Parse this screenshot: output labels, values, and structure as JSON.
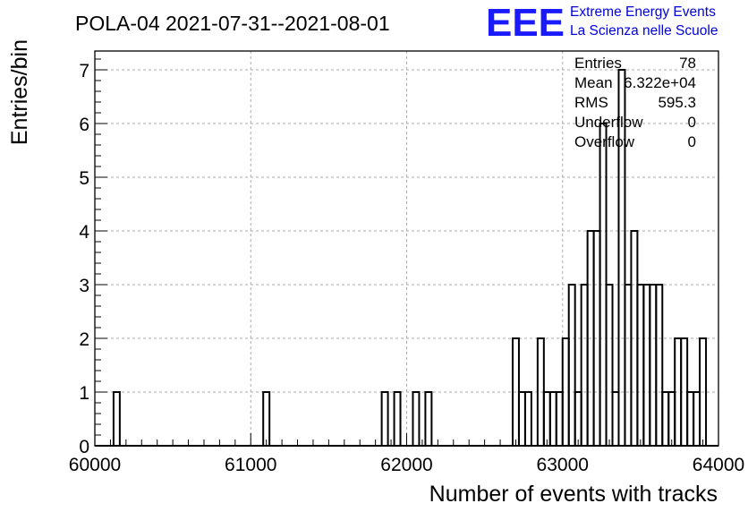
{
  "chart_data": {
    "type": "bar",
    "title": "POLA-04 2021-07-31--2021-08-01",
    "xlabel": "Number of events with tracks",
    "ylabel": "Entries/bin",
    "xlim": [
      60000,
      64000
    ],
    "ylim": [
      0,
      7.35
    ],
    "x_ticks": [
      60000,
      61000,
      62000,
      63000,
      64000
    ],
    "y_ticks": [
      0,
      1,
      2,
      3,
      4,
      5,
      6,
      7
    ],
    "grid": true,
    "bin_width": 40,
    "bins": [
      {
        "x": 60120,
        "count": 1
      },
      {
        "x": 61080,
        "count": 1
      },
      {
        "x": 61840,
        "count": 1
      },
      {
        "x": 61920,
        "count": 1
      },
      {
        "x": 62040,
        "count": 1
      },
      {
        "x": 62120,
        "count": 1
      },
      {
        "x": 62680,
        "count": 2
      },
      {
        "x": 62720,
        "count": 1
      },
      {
        "x": 62760,
        "count": 1
      },
      {
        "x": 62840,
        "count": 2
      },
      {
        "x": 62880,
        "count": 1
      },
      {
        "x": 62920,
        "count": 1
      },
      {
        "x": 62960,
        "count": 1
      },
      {
        "x": 63000,
        "count": 2
      },
      {
        "x": 63040,
        "count": 3
      },
      {
        "x": 63080,
        "count": 1
      },
      {
        "x": 63120,
        "count": 3
      },
      {
        "x": 63160,
        "count": 4
      },
      {
        "x": 63200,
        "count": 4
      },
      {
        "x": 63240,
        "count": 6
      },
      {
        "x": 63280,
        "count": 3
      },
      {
        "x": 63320,
        "count": 1
      },
      {
        "x": 63360,
        "count": 7
      },
      {
        "x": 63400,
        "count": 3
      },
      {
        "x": 63440,
        "count": 4
      },
      {
        "x": 63480,
        "count": 3
      },
      {
        "x": 63520,
        "count": 3
      },
      {
        "x": 63560,
        "count": 3
      },
      {
        "x": 63600,
        "count": 3
      },
      {
        "x": 63640,
        "count": 1
      },
      {
        "x": 63680,
        "count": 1
      },
      {
        "x": 63720,
        "count": 2
      },
      {
        "x": 63760,
        "count": 2
      },
      {
        "x": 63800,
        "count": 1
      },
      {
        "x": 63840,
        "count": 1
      },
      {
        "x": 63880,
        "count": 2
      }
    ],
    "stats": {
      "entries_label": "Entries",
      "entries": "78",
      "mean_label": "Mean",
      "mean": "6.322e+04",
      "rms_label": "RMS",
      "rms": "595.3",
      "underflow_label": "Underflow",
      "underflow": "0",
      "overflow_label": "Overflow",
      "overflow": "0"
    },
    "colors": {
      "line": "#000000",
      "grid": "#aaaaaa",
      "logo": "#1a1aff"
    }
  },
  "logo": {
    "mark": "EEE",
    "line1": "Extreme Energy Events",
    "line2": "La Scienza nelle Scuole"
  }
}
